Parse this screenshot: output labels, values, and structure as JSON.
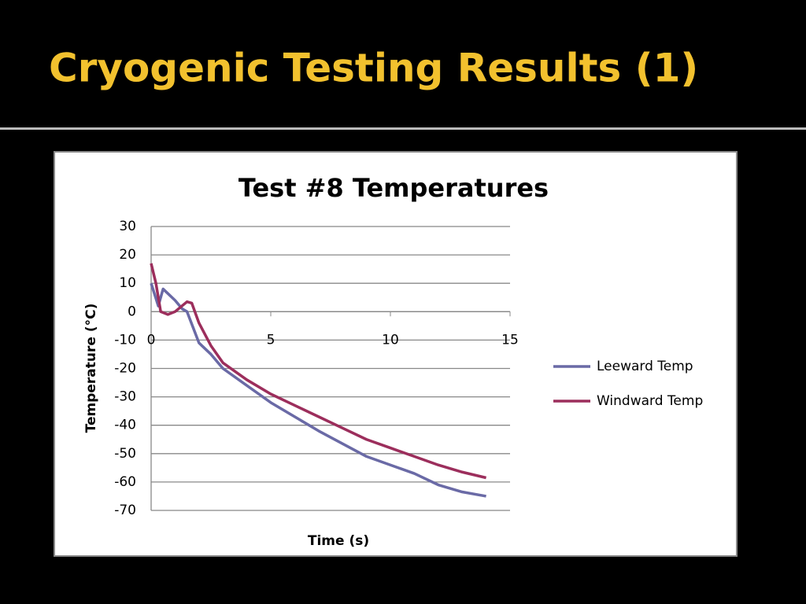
{
  "slide": {
    "title": "Cryogenic Testing Results (1)"
  },
  "chart_data": {
    "type": "line",
    "title": "Test #8 Temperatures",
    "x_label": "Time (s)",
    "y_label": "Temperature (°C)",
    "xlim": [
      0,
      15
    ],
    "xticks": [
      0,
      5,
      10,
      15
    ],
    "ylim": [
      -70,
      30
    ],
    "yticks": [
      -70,
      -60,
      -50,
      -40,
      -30,
      -20,
      -10,
      0,
      10,
      20,
      30
    ],
    "grid": true,
    "legend": "right",
    "series": [
      {
        "name": "Leeward Temp",
        "color": "#6a6aa6",
        "x": [
          0,
          0.3,
          0.5,
          1,
          1.3,
          1.5,
          2,
          2.5,
          3,
          4,
          5,
          6,
          7,
          8,
          9,
          10,
          11,
          12,
          13,
          14
        ],
        "values": [
          10,
          2,
          8,
          4,
          1,
          0,
          -11,
          -15,
          -20,
          -26,
          -32,
          -37,
          -42,
          -46.5,
          -51,
          -54,
          -57,
          -61,
          -63.5,
          -65
        ]
      },
      {
        "name": "Windward Temp",
        "color": "#9c2e5c",
        "x": [
          0,
          0.2,
          0.4,
          0.7,
          1,
          1.5,
          1.7,
          2,
          2.5,
          3,
          4,
          5,
          6,
          7,
          8,
          9,
          10,
          11,
          12,
          13,
          14
        ],
        "values": [
          17,
          10,
          0,
          -1,
          0,
          3.5,
          3,
          -4,
          -12,
          -18,
          -24,
          -29,
          -33,
          -37,
          -41,
          -45,
          -48,
          -51,
          -54,
          -56.5,
          -58.5
        ]
      }
    ]
  }
}
